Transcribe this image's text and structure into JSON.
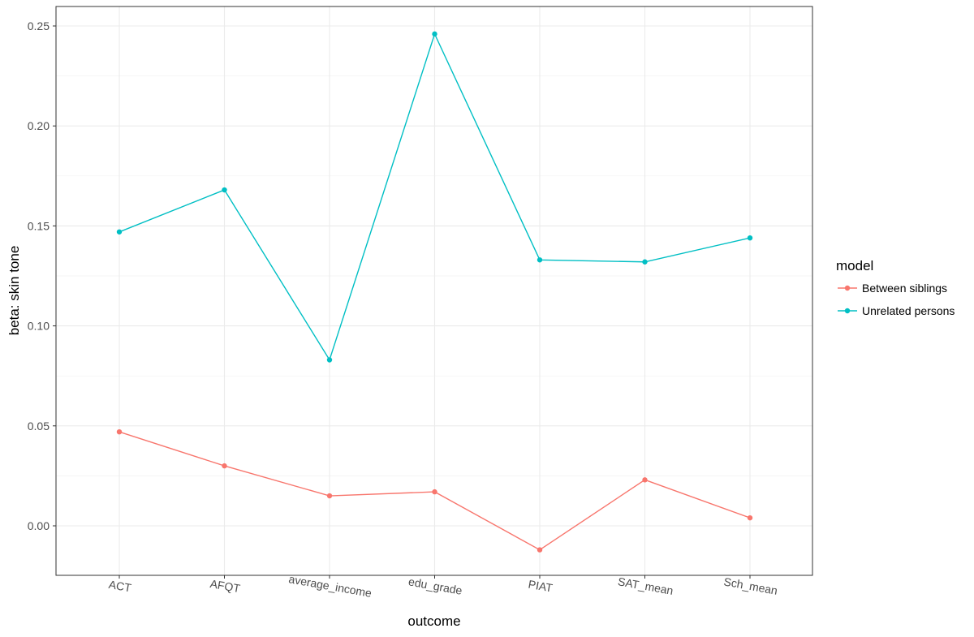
{
  "chart_data": {
    "type": "line",
    "xlabel": "outcome",
    "ylabel": "beta: skin tone",
    "categories": [
      "ACT",
      "AFQT",
      "average_income",
      "edu_grade",
      "PIAT",
      "SAT_mean",
      "Sch_mean"
    ],
    "ylim": [
      -0.025,
      0.255
    ],
    "yticks": [
      0.0,
      0.05,
      0.1,
      0.15,
      0.2,
      0.25
    ],
    "ytick_labels": [
      "0.00",
      "0.05",
      "0.10",
      "0.15",
      "0.20",
      "0.25"
    ],
    "grid": true,
    "legend_title": "model",
    "legend_position": "right",
    "series": [
      {
        "name": "Between siblings",
        "color": "#F8766D",
        "values": [
          0.047,
          0.03,
          0.015,
          0.017,
          -0.012,
          0.023,
          0.004
        ]
      },
      {
        "name": "Unrelated persons",
        "color": "#00BFC4",
        "values": [
          0.147,
          0.168,
          0.083,
          0.246,
          0.133,
          0.132,
          0.144
        ]
      }
    ]
  }
}
